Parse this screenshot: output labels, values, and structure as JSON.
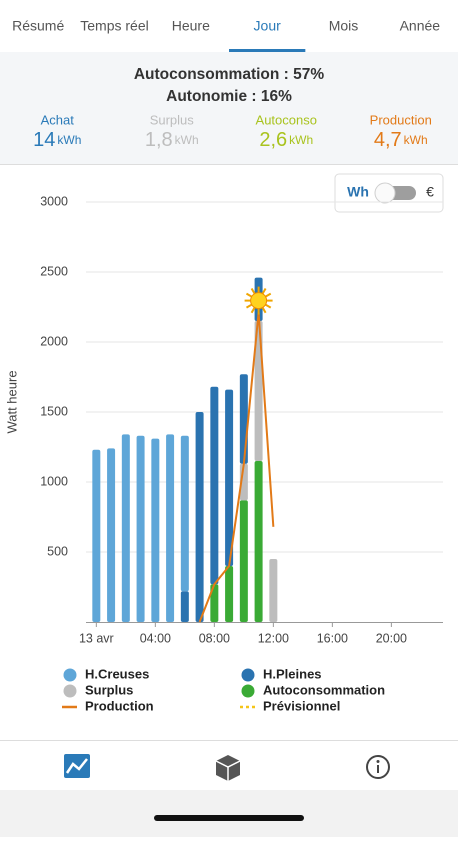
{
  "tabs": [
    {
      "label": "Résumé",
      "active": false
    },
    {
      "label": "Temps réel",
      "active": false
    },
    {
      "label": "Heure",
      "active": false
    },
    {
      "label": "Jour",
      "active": true
    },
    {
      "label": "Mois",
      "active": false
    },
    {
      "label": "Année",
      "active": false
    }
  ],
  "summary": {
    "autoconsommation": "Autoconsommation : 57%",
    "autonomie": "Autonomie : 16%",
    "stats": [
      {
        "label": "Achat",
        "value": "14",
        "unit": "kWh",
        "color": "#2a7ab8"
      },
      {
        "label": "Surplus",
        "value": "1,8",
        "unit": "kWh",
        "color": "#bdbdbd"
      },
      {
        "label": "Autoconso",
        "value": "2,6",
        "unit": "kWh",
        "color": "#a9c31e"
      },
      {
        "label": "Production",
        "value": "4,7",
        "unit": "kWh",
        "color": "#e27a18"
      }
    ]
  },
  "toggle": {
    "left": "Wh",
    "right": "€"
  },
  "chart_data": {
    "type": "bar",
    "stacked": true,
    "y_label": "Watt heure",
    "x": [
      0,
      1,
      2,
      3,
      4,
      5,
      6,
      7,
      8,
      9,
      10,
      11,
      12
    ],
    "xlim": [
      -0.7,
      23.5
    ],
    "xticks": [
      {
        "value": 0,
        "label": "13 avr"
      },
      {
        "value": 4,
        "label": "04:00"
      },
      {
        "value": 8,
        "label": "08:00"
      },
      {
        "value": 12,
        "label": "12:00"
      },
      {
        "value": 16,
        "label": "16:00"
      },
      {
        "value": 20,
        "label": "20:00"
      }
    ],
    "ylim": [
      0,
      3150
    ],
    "yticks": [
      500,
      1000,
      1500,
      2000,
      2500,
      3000
    ],
    "grid": true,
    "series": [
      {
        "name": "H.Creuses",
        "type": "bar",
        "color": "#5ea6d8",
        "values": [
          1230,
          1240,
          1340,
          1330,
          1310,
          1340,
          1110,
          0,
          0,
          0,
          0,
          0,
          0
        ]
      },
      {
        "name": "H.Pleines",
        "type": "bar",
        "color": "#2a73b0",
        "values": [
          0,
          0,
          0,
          0,
          0,
          0,
          220,
          1500,
          1410,
          1260,
          640,
          310,
          0
        ]
      },
      {
        "name": "Surplus",
        "type": "bar",
        "color": "#bdbdbd",
        "values": [
          0,
          0,
          0,
          0,
          0,
          0,
          0,
          0,
          0,
          0,
          260,
          1000,
          450
        ]
      },
      {
        "name": "Autoconsommation",
        "type": "bar",
        "color": "#3aaa35",
        "values": [
          0,
          0,
          0,
          0,
          0,
          0,
          0,
          0,
          270,
          400,
          870,
          1150,
          0
        ]
      },
      {
        "name": "Production",
        "type": "line",
        "color": "#e27a18",
        "values": [
          null,
          null,
          null,
          null,
          null,
          null,
          null,
          0,
          270,
          400,
          1130,
          2210,
          680
        ]
      },
      {
        "name": "Prévisionnel",
        "type": "dashed",
        "color": "#f5c518",
        "values": [
          null,
          null,
          null,
          null,
          null,
          null,
          null,
          null,
          null,
          null,
          null,
          null,
          null
        ]
      }
    ]
  }
}
